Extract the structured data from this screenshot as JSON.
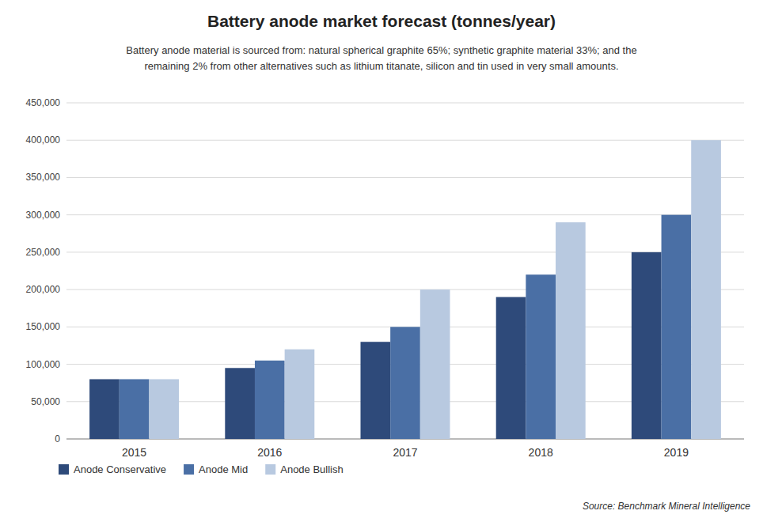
{
  "chart_data": {
    "type": "bar",
    "title": "Battery anode market forecast (tonnes/year)",
    "subtitle": [
      "Battery anode material is sourced from: natural spherical graphite 65%; synthetic graphite material 33%; and the",
      "remaining 2% from other alternatives such as lithium titanate, silicon and tin used in very small amounts."
    ],
    "annotations": [
      "Source: Benchmark Mineral Intelligence"
    ],
    "categories": [
      "2015",
      "2016",
      "2017",
      "2018",
      "2019"
    ],
    "series": [
      {
        "name": "Anode Conservative",
        "color": "#2E4A7A",
        "values": [
          80000,
          95000,
          130000,
          190000,
          250000
        ]
      },
      {
        "name": "Anode Mid",
        "color": "#4A6FA5",
        "values": [
          80000,
          105000,
          150000,
          220000,
          300000
        ]
      },
      {
        "name": "Anode Bullish",
        "color": "#B8C9E0",
        "values": [
          80000,
          120000,
          200000,
          290000,
          400000
        ]
      }
    ],
    "ylim": [
      0,
      450000
    ],
    "yticks": [
      0,
      {
        "value": 50000,
        "label": "50,000"
      },
      {
        "value": 100000,
        "label": "100,000"
      },
      {
        "value": 150000,
        "label": "150,000"
      },
      {
        "value": 200000,
        "label": "200,000"
      },
      {
        "value": 250000,
        "label": "250,000"
      },
      {
        "value": 300000,
        "label": "300,000"
      },
      {
        "value": 350000,
        "label": "350,000"
      },
      {
        "value": 400000,
        "label": "400,000"
      },
      {
        "value": 450000,
        "label": "450,000"
      }
    ],
    "grid": true,
    "legend": "bottom"
  }
}
